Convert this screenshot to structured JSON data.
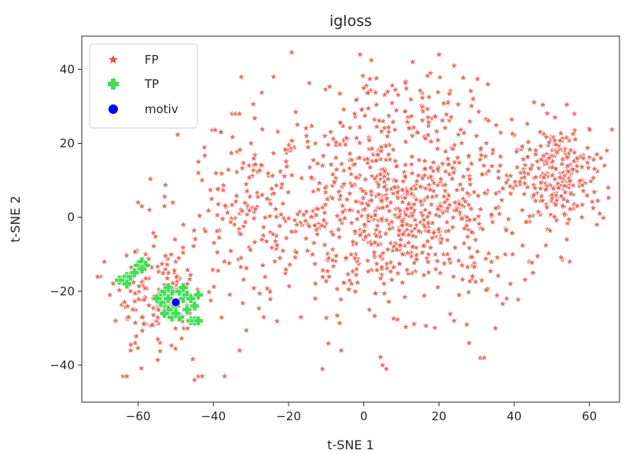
{
  "chart_data": {
    "type": "scatter",
    "title": "igloss",
    "xlabel": "t-SNE 1",
    "ylabel": "t-SNE 2",
    "xlim": [
      -75,
      68
    ],
    "ylim": [
      -50,
      49
    ],
    "xticks": [
      -60,
      -40,
      -20,
      0,
      20,
      40,
      60
    ],
    "yticks": [
      -40,
      -20,
      0,
      20,
      40
    ],
    "xtick_labels": [
      "−60",
      "−40",
      "−20",
      "0",
      "20",
      "40",
      "60"
    ],
    "ytick_labels": [
      "−40",
      "−20",
      "0",
      "20",
      "40"
    ],
    "grid": false,
    "legend_position": "top-left",
    "series": [
      {
        "name": "FP",
        "marker": "star",
        "color": "#e05a4e",
        "point_count": 1500,
        "clusters": [
          {
            "cx": 10,
            "cy": 2,
            "sx": 22,
            "sy": 16,
            "n": 820
          },
          {
            "cx": 52,
            "cy": 12,
            "sx": 8,
            "sy": 9,
            "n": 240
          },
          {
            "cx": -55,
            "cy": -22,
            "sx": 7,
            "sy": 9,
            "n": 150
          },
          {
            "cx": -30,
            "cy": 0,
            "sx": 12,
            "sy": 18,
            "n": 170
          },
          {
            "cx": 10,
            "cy": 30,
            "sx": 14,
            "sy": 7,
            "n": 120
          }
        ],
        "points": [
          [
            -70,
            -16
          ],
          [
            -69,
            -12
          ],
          [
            -66,
            -28
          ],
          [
            -64,
            -43
          ],
          [
            -63,
            -43
          ],
          [
            -62,
            -36
          ],
          [
            -60,
            4
          ],
          [
            -59,
            3
          ],
          [
            -57,
            2
          ],
          [
            -53,
            3
          ],
          [
            -45,
            -44
          ],
          [
            -44,
            -43
          ],
          [
            -43,
            -43
          ],
          [
            -44,
            15
          ],
          [
            -43,
            10
          ],
          [
            -44,
            12
          ],
          [
            -37,
            -43
          ],
          [
            -33,
            -36
          ],
          [
            -24,
            38
          ],
          [
            -11,
            -41
          ],
          [
            -6,
            -36
          ],
          [
            -1,
            44
          ],
          [
            5,
            -40
          ],
          [
            6,
            -41
          ],
          [
            13,
            42
          ],
          [
            20,
            44
          ],
          [
            24,
            41
          ],
          [
            31,
            -38
          ],
          [
            32,
            -38
          ],
          [
            33,
            36
          ],
          [
            44,
            -12
          ],
          [
            45,
            -15
          ],
          [
            56,
            28
          ],
          [
            62,
            17
          ],
          [
            64,
            14
          ],
          [
            65,
            8
          ],
          [
            62,
            -2
          ],
          [
            58,
            0
          ],
          [
            54,
            -6
          ],
          [
            39,
            -18
          ],
          [
            38,
            -22
          ],
          [
            35,
            -30
          ],
          [
            28,
            -34
          ],
          [
            24,
            -28
          ],
          [
            -35,
            28
          ],
          [
            -30,
            20
          ],
          [
            -38,
            23
          ],
          [
            -50,
            -12
          ],
          [
            -48,
            -2
          ],
          [
            -58,
            -10
          ]
        ]
      },
      {
        "name": "TP",
        "marker": "plus",
        "color": "#44dd55",
        "points": [
          [
            -65,
            -17
          ],
          [
            -64,
            -17
          ],
          [
            -63,
            -16
          ],
          [
            -63,
            -18
          ],
          [
            -62,
            -16
          ],
          [
            -60,
            -13
          ],
          [
            -59,
            -12
          ],
          [
            -58,
            -13
          ],
          [
            -59,
            -14
          ],
          [
            -61,
            -15
          ],
          [
            -54,
            -21
          ],
          [
            -53,
            -20
          ],
          [
            -52,
            -22
          ],
          [
            -51,
            -20
          ],
          [
            -53,
            -24
          ],
          [
            -52,
            -25
          ],
          [
            -50,
            -24
          ],
          [
            -49,
            -20
          ],
          [
            -48,
            -22
          ],
          [
            -47,
            -21
          ],
          [
            -46,
            -22
          ],
          [
            -44,
            -21
          ],
          [
            -45,
            -24
          ],
          [
            -47,
            -25
          ],
          [
            -49,
            -27
          ],
          [
            -51,
            -27
          ],
          [
            -53,
            -26
          ],
          [
            -54,
            -23
          ],
          [
            -48,
            -19
          ],
          [
            -46,
            -28
          ],
          [
            -45,
            -28
          ],
          [
            -44,
            -28
          ],
          [
            -50,
            -26
          ],
          [
            -52,
            -19
          ],
          [
            -55,
            -22
          ]
        ]
      },
      {
        "name": "motiv",
        "marker": "circle",
        "color": "#0000ff",
        "points": [
          [
            -50,
            -23
          ]
        ]
      }
    ]
  }
}
